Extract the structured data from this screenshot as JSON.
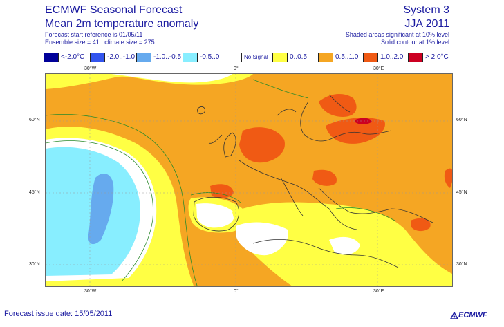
{
  "header": {
    "title_line1": "ECMWF Seasonal Forecast",
    "title_line2": "Mean 2m temperature anomaly",
    "sub_line1": "Forecast start reference is 01/05/11",
    "sub_line2": "Ensemble size = 41 , climate size = 275",
    "system": "System 3",
    "season": "JJA 2011",
    "note_line1": "Shaded areas significant at 10% level",
    "note_line2": "Solid contour at 1% level"
  },
  "legend": [
    {
      "label": "<-2.0°C",
      "color": "#000099"
    },
    {
      "label": "-2.0..-1.0",
      "color": "#3355ee"
    },
    {
      "label": "-1.0..-0.5",
      "color": "#66aaee"
    },
    {
      "label": "-0.5..0",
      "color": "#88eeff"
    },
    {
      "label": "No Signal",
      "color": "#ffffff"
    },
    {
      "label": "0..0.5",
      "color": "#ffff44"
    },
    {
      "label": "0.5..1.0",
      "color": "#f5a623"
    },
    {
      "label": "1.0..2.0",
      "color": "#f05a14"
    },
    {
      "label": "> 2.0°C",
      "color": "#cc0022"
    }
  ],
  "axes": {
    "top_lon": [
      "30°W",
      "0°",
      "30°E"
    ],
    "bottom_lon": [
      "30°W",
      "0°",
      "30°E"
    ],
    "left_lat": [
      "60°N",
      "45°N",
      "30°N"
    ],
    "right_lat": [
      "60°N",
      "45°N",
      "30°N"
    ]
  },
  "footer": {
    "issue_date": "Forecast issue date: 15/05/2011",
    "logo": "ECMWF"
  }
}
